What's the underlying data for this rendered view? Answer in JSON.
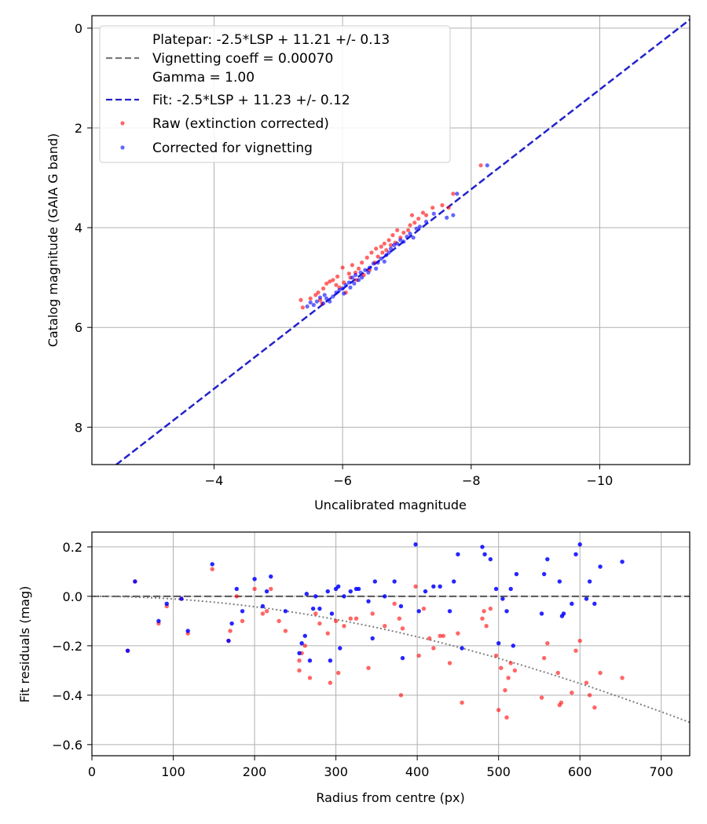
{
  "chart_data": [
    {
      "type": "scatter",
      "title": "",
      "xlabel": "Uncalibrated magnitude",
      "ylabel": "Catalog magnitude (GAIA G band)",
      "xlim": [
        -2.1,
        -11.4
      ],
      "ylim": [
        8.75,
        -0.25
      ],
      "x_inverted": true,
      "y_inverted": true,
      "grid": true,
      "x_ticks": [
        -4,
        -6,
        -8,
        -10
      ],
      "x_tick_labels": [
        "−4",
        "−6",
        "−8",
        "−10"
      ],
      "y_ticks": [
        0,
        2,
        4,
        6,
        8
      ],
      "y_tick_labels": [
        "0",
        "2",
        "4",
        "6",
        "8"
      ],
      "legend_position": "top-left",
      "lines": [
        {
          "name": "Platepar",
          "label_lines": [
            "Platepar: -2.5*LSP + 11.21 +/- 0.13",
            "Vignetting coeff = 0.00070",
            "Gamma = 1.00"
          ],
          "color": "#7a7a7a",
          "style": "dashed",
          "intercept": 11.21,
          "visible": false
        },
        {
          "name": "Fit",
          "label_lines": [
            "Fit: -2.5*LSP + 11.23 +/- 0.12"
          ],
          "color": "#2222cc",
          "style": "dashed",
          "intercept": 11.23,
          "visible": true
        }
      ],
      "series": [
        {
          "name": "Raw (extinction corrected)",
          "color": "#ff0000",
          "points": [
            [
              -5.35,
              5.45
            ],
            [
              -5.38,
              5.6
            ],
            [
              -5.5,
              5.42
            ],
            [
              -5.58,
              5.35
            ],
            [
              -5.62,
              5.3
            ],
            [
              -5.65,
              5.45
            ],
            [
              -5.68,
              5.52
            ],
            [
              -5.7,
              5.22
            ],
            [
              -5.75,
              5.12
            ],
            [
              -5.8,
              5.08
            ],
            [
              -5.85,
              5.05
            ],
            [
              -5.9,
              5.15
            ],
            [
              -5.92,
              4.98
            ],
            [
              -5.95,
              5.2
            ],
            [
              -6.0,
              4.8
            ],
            [
              -6.02,
              5.1
            ],
            [
              -6.05,
              5.3
            ],
            [
              -6.1,
              4.92
            ],
            [
              -6.12,
              5.0
            ],
            [
              -6.15,
              4.75
            ],
            [
              -6.2,
              4.9
            ],
            [
              -6.22,
              5.05
            ],
            [
              -6.25,
              4.82
            ],
            [
              -6.3,
              4.7
            ],
            [
              -6.33,
              4.95
            ],
            [
              -6.38,
              4.6
            ],
            [
              -6.42,
              4.85
            ],
            [
              -6.45,
              4.5
            ],
            [
              -6.5,
              4.7
            ],
            [
              -6.52,
              4.42
            ],
            [
              -6.55,
              4.58
            ],
            [
              -6.6,
              4.38
            ],
            [
              -6.62,
              4.5
            ],
            [
              -6.65,
              4.32
            ],
            [
              -6.68,
              4.45
            ],
            [
              -6.72,
              4.25
            ],
            [
              -6.75,
              4.35
            ],
            [
              -6.78,
              4.15
            ],
            [
              -6.82,
              4.3
            ],
            [
              -6.85,
              4.05
            ],
            [
              -6.9,
              4.2
            ],
            [
              -6.95,
              4.1
            ],
            [
              -7.02,
              4.05
            ],
            [
              -7.05,
              3.95
            ],
            [
              -7.08,
              3.75
            ],
            [
              -7.12,
              3.9
            ],
            [
              -7.18,
              3.82
            ],
            [
              -7.25,
              3.7
            ],
            [
              -7.3,
              3.75
            ],
            [
              -7.4,
              3.6
            ],
            [
              -7.55,
              3.55
            ],
            [
              -7.65,
              3.6
            ],
            [
              -7.72,
              3.32
            ],
            [
              -8.15,
              2.75
            ]
          ]
        },
        {
          "name": "Corrected for vignetting",
          "color": "#0000ff",
          "points": [
            [
              -5.45,
              5.58
            ],
            [
              -5.5,
              5.5
            ],
            [
              -5.55,
              5.55
            ],
            [
              -5.6,
              5.48
            ],
            [
              -5.65,
              5.4
            ],
            [
              -5.7,
              5.52
            ],
            [
              -5.72,
              5.35
            ],
            [
              -5.75,
              5.42
            ],
            [
              -5.8,
              5.48
            ],
            [
              -5.85,
              5.38
            ],
            [
              -5.9,
              5.3
            ],
            [
              -5.95,
              5.25
            ],
            [
              -6.0,
              5.22
            ],
            [
              -6.02,
              5.32
            ],
            [
              -6.05,
              5.15
            ],
            [
              -6.1,
              5.1
            ],
            [
              -6.12,
              5.2
            ],
            [
              -6.15,
              5.0
            ],
            [
              -6.18,
              5.12
            ],
            [
              -6.2,
              4.95
            ],
            [
              -6.25,
              5.05
            ],
            [
              -6.28,
              4.9
            ],
            [
              -6.3,
              5.0
            ],
            [
              -6.35,
              4.85
            ],
            [
              -6.4,
              4.9
            ],
            [
              -6.42,
              4.8
            ],
            [
              -6.48,
              4.72
            ],
            [
              -6.52,
              4.82
            ],
            [
              -6.55,
              4.7
            ],
            [
              -6.6,
              4.62
            ],
            [
              -6.65,
              4.68
            ],
            [
              -6.68,
              4.55
            ],
            [
              -6.72,
              4.5
            ],
            [
              -6.75,
              4.42
            ],
            [
              -6.8,
              4.35
            ],
            [
              -6.85,
              4.32
            ],
            [
              -6.9,
              4.25
            ],
            [
              -6.95,
              4.28
            ],
            [
              -7.0,
              4.18
            ],
            [
              -7.05,
              4.12
            ],
            [
              -7.1,
              4.2
            ],
            [
              -7.15,
              4.02
            ],
            [
              -7.2,
              3.98
            ],
            [
              -7.3,
              3.88
            ],
            [
              -7.42,
              3.72
            ],
            [
              -7.62,
              3.8
            ],
            [
              -7.72,
              3.75
            ],
            [
              -7.78,
              3.32
            ],
            [
              -8.25,
              2.75
            ]
          ]
        }
      ]
    },
    {
      "type": "scatter",
      "title": "",
      "xlabel": "Radius from centre (px)",
      "ylabel": "Fit residuals (mag)",
      "xlim": [
        0,
        735
      ],
      "ylim": [
        -0.645,
        0.26
      ],
      "grid": true,
      "x_ticks": [
        0,
        100,
        200,
        300,
        400,
        500,
        600,
        700
      ],
      "x_tick_labels": [
        "0",
        "100",
        "200",
        "300",
        "400",
        "500",
        "600",
        "700"
      ],
      "y_ticks": [
        0.2,
        0.0,
        -0.2,
        -0.4,
        -0.6
      ],
      "y_tick_labels": [
        "0.2",
        "0.0",
        "−0.2",
        "−0.4",
        "−0.6"
      ],
      "lines": [
        {
          "name": "zero",
          "color": "#555555",
          "style": "dashed",
          "value": 0.0
        },
        {
          "name": "vignetting model",
          "color": "#808080",
          "style": "dotted",
          "coeff": 0.0007
        }
      ],
      "series": [
        {
          "name": "Raw (extinction corrected)",
          "color": "#ff0000",
          "points": [
            [
              44,
              -0.22
            ],
            [
              53,
              0.06
            ],
            [
              82,
              -0.11
            ],
            [
              92,
              -0.04
            ],
            [
              110,
              -0.01
            ],
            [
              118,
              -0.15
            ],
            [
              148,
              0.11
            ],
            [
              168,
              -0.18
            ],
            [
              170,
              -0.14
            ],
            [
              178,
              0.0
            ],
            [
              185,
              -0.1
            ],
            [
              200,
              0.03
            ],
            [
              210,
              -0.07
            ],
            [
              215,
              -0.06
            ],
            [
              220,
              0.03
            ],
            [
              230,
              -0.1
            ],
            [
              238,
              -0.14
            ],
            [
              255,
              -0.26
            ],
            [
              255,
              -0.3
            ],
            [
              258,
              -0.23
            ],
            [
              262,
              -0.2
            ],
            [
              268,
              -0.33
            ],
            [
              275,
              -0.07
            ],
            [
              280,
              -0.11
            ],
            [
              290,
              -0.15
            ],
            [
              293,
              -0.35
            ],
            [
              300,
              -0.1
            ],
            [
              303,
              -0.31
            ],
            [
              310,
              -0.12
            ],
            [
              318,
              -0.09
            ],
            [
              325,
              -0.09
            ],
            [
              340,
              -0.29
            ],
            [
              345,
              -0.07
            ],
            [
              360,
              -0.12
            ],
            [
              372,
              -0.03
            ],
            [
              378,
              -0.09
            ],
            [
              380,
              -0.4
            ],
            [
              382,
              -0.13
            ],
            [
              398,
              0.04
            ],
            [
              402,
              -0.24
            ],
            [
              408,
              -0.05
            ],
            [
              415,
              -0.17
            ],
            [
              420,
              -0.21
            ],
            [
              428,
              -0.16
            ],
            [
              432,
              -0.16
            ],
            [
              440,
              -0.27
            ],
            [
              450,
              -0.15
            ],
            [
              455,
              -0.43
            ],
            [
              480,
              -0.09
            ],
            [
              482,
              -0.06
            ],
            [
              485,
              -0.12
            ],
            [
              490,
              -0.05
            ],
            [
              497,
              -0.24
            ],
            [
              500,
              -0.46
            ],
            [
              503,
              -0.29
            ],
            [
              508,
              -0.38
            ],
            [
              510,
              -0.49
            ],
            [
              512,
              -0.33
            ],
            [
              515,
              -0.27
            ],
            [
              520,
              -0.3
            ],
            [
              553,
              -0.41
            ],
            [
              556,
              -0.25
            ],
            [
              560,
              -0.19
            ],
            [
              573,
              -0.31
            ],
            [
              575,
              -0.44
            ],
            [
              577,
              -0.43
            ],
            [
              590,
              -0.39
            ],
            [
              595,
              -0.22
            ],
            [
              600,
              -0.18
            ],
            [
              608,
              -0.35
            ],
            [
              612,
              -0.4
            ],
            [
              618,
              -0.45
            ],
            [
              625,
              -0.31
            ],
            [
              652,
              -0.33
            ]
          ]
        },
        {
          "name": "Corrected for vignetting",
          "color": "#0000ff",
          "points": [
            [
              44,
              -0.22
            ],
            [
              53,
              0.06
            ],
            [
              82,
              -0.1
            ],
            [
              92,
              -0.03
            ],
            [
              110,
              -0.01
            ],
            [
              118,
              -0.14
            ],
            [
              148,
              0.13
            ],
            [
              168,
              -0.18
            ],
            [
              172,
              -0.11
            ],
            [
              178,
              0.03
            ],
            [
              185,
              -0.06
            ],
            [
              200,
              0.07
            ],
            [
              210,
              -0.04
            ],
            [
              215,
              0.02
            ],
            [
              220,
              0.08
            ],
            [
              238,
              -0.06
            ],
            [
              255,
              -0.23
            ],
            [
              258,
              -0.19
            ],
            [
              262,
              -0.16
            ],
            [
              264,
              0.01
            ],
            [
              268,
              -0.26
            ],
            [
              272,
              -0.05
            ],
            [
              275,
              0.0
            ],
            [
              280,
              -0.05
            ],
            [
              290,
              0.02
            ],
            [
              293,
              -0.26
            ],
            [
              295,
              -0.07
            ],
            [
              300,
              0.03
            ],
            [
              303,
              0.04
            ],
            [
              305,
              -0.21
            ],
            [
              310,
              0.0
            ],
            [
              318,
              0.02
            ],
            [
              325,
              0.03
            ],
            [
              328,
              0.03
            ],
            [
              340,
              -0.02
            ],
            [
              345,
              -0.17
            ],
            [
              348,
              0.06
            ],
            [
              360,
              0.0
            ],
            [
              372,
              0.06
            ],
            [
              380,
              -0.04
            ],
            [
              382,
              -0.25
            ],
            [
              398,
              0.21
            ],
            [
              402,
              -0.06
            ],
            [
              410,
              0.02
            ],
            [
              420,
              0.04
            ],
            [
              428,
              0.04
            ],
            [
              440,
              -0.06
            ],
            [
              445,
              0.06
            ],
            [
              450,
              0.17
            ],
            [
              455,
              -0.21
            ],
            [
              480,
              0.2
            ],
            [
              483,
              0.17
            ],
            [
              490,
              0.15
            ],
            [
              497,
              0.03
            ],
            [
              500,
              -0.19
            ],
            [
              505,
              -0.01
            ],
            [
              510,
              -0.06
            ],
            [
              515,
              0.03
            ],
            [
              518,
              -0.2
            ],
            [
              522,
              0.09
            ],
            [
              553,
              -0.07
            ],
            [
              556,
              0.09
            ],
            [
              560,
              0.15
            ],
            [
              575,
              0.06
            ],
            [
              578,
              -0.08
            ],
            [
              580,
              -0.07
            ],
            [
              590,
              -0.03
            ],
            [
              595,
              0.17
            ],
            [
              600,
              0.21
            ],
            [
              608,
              -0.01
            ],
            [
              612,
              0.06
            ],
            [
              618,
              -0.03
            ],
            [
              625,
              0.12
            ],
            [
              652,
              0.14
            ]
          ]
        }
      ]
    }
  ]
}
